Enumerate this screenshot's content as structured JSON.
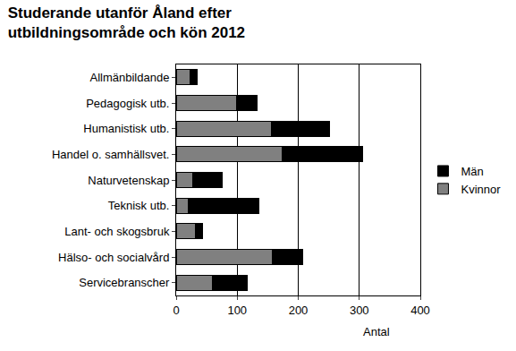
{
  "chart_data": {
    "type": "bar",
    "title": "Studerande utanför Åland efter\nutbildningsområde och kön 2012",
    "x_label": "Antal",
    "orientation": "horizontal",
    "stacked": true,
    "categories": [
      "Allmänbildande",
      "Pedagogisk utb.",
      "Humanistisk utb.",
      "Handel o. samhällsvet.",
      "Naturvetenskap",
      "Teknisk utb.",
      "Lant- och skogsbruk",
      "Hälso- och socialvård",
      "Servicebranscher"
    ],
    "series": [
      {
        "name": "Kvinnor",
        "color": "#808080",
        "values": [
          22,
          99,
          156,
          174,
          27,
          20,
          31,
          157,
          60
        ]
      },
      {
        "name": "Män",
        "color": "#000000",
        "values": [
          13,
          34,
          95,
          132,
          48,
          116,
          12,
          51,
          56
        ]
      }
    ],
    "xlim": [
      0,
      400
    ],
    "xticks": [
      0,
      100,
      200,
      300,
      400
    ],
    "grid": true,
    "legend": "right"
  }
}
